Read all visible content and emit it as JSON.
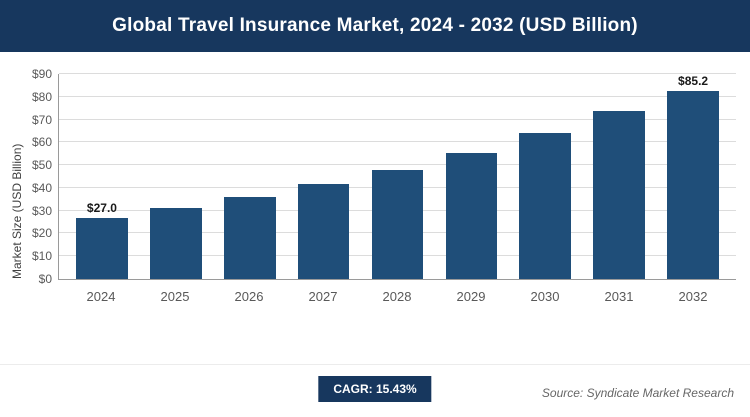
{
  "header": {
    "title": "Global Travel Insurance Market, 2024 - 2032 (USD Billion)"
  },
  "chart_data": {
    "type": "bar",
    "title": "Global Travel Insurance Market, 2024 - 2032 (USD Billion)",
    "categories": [
      "2024",
      "2025",
      "2026",
      "2027",
      "2028",
      "2029",
      "2030",
      "2031",
      "2032"
    ],
    "values": [
      27.0,
      31.2,
      36.0,
      41.5,
      47.9,
      55.3,
      63.9,
      73.7,
      85.2
    ],
    "value_labels": [
      "$27.0",
      "",
      "",
      "",
      "",
      "",
      "",
      "",
      "$85.2"
    ],
    "xlabel": "",
    "ylabel": "Market Size (USD Billion)",
    "ylim": [
      0,
      90
    ],
    "ytick_step": 10,
    "ytick_prefix": "$",
    "grid": "horizontal",
    "legend": "none",
    "bar_color": "#1f4e79"
  },
  "footer": {
    "cagr_label": "CAGR: 15.43%",
    "source": "Source: Syndicate Market Research"
  }
}
